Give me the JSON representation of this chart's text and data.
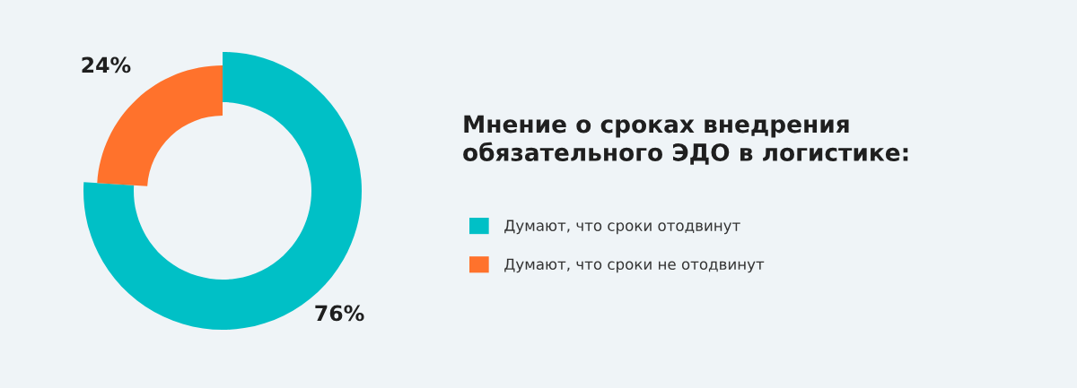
{
  "chart_data": {
    "type": "donut",
    "title": "Мнение о сроках внедрения\nобязательного ЭДО в логистике:",
    "categories": [
      "Думают, что сроки отодвинут",
      "Думают, что сроки не отодвинут"
    ],
    "values": [
      76,
      24
    ],
    "colors": [
      "#00c0c6",
      "#ff722c"
    ],
    "value_labels": [
      "76%",
      "24%"
    ],
    "legend": "right"
  }
}
